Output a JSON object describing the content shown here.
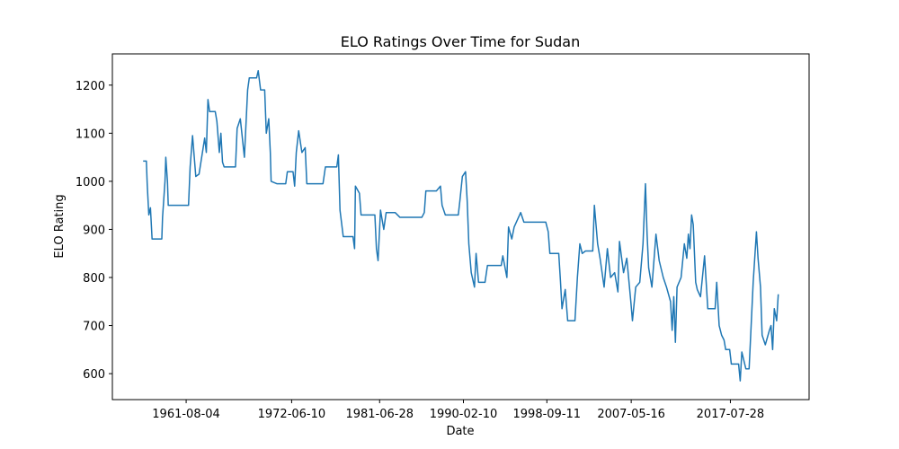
{
  "chart_data": {
    "type": "line",
    "title": "ELO Ratings Over Time for Sudan",
    "x_label": "Date",
    "y_label": "ELO Rating",
    "x": [
      "1957-03",
      "1957-07",
      "1957-08",
      "1957-10",
      "1957-12",
      "1958-02",
      "1959-02",
      "1959-03",
      "1959-06",
      "1959-07",
      "1959-09",
      "1959-10",
      "1961-11",
      "1962-01",
      "1962-04",
      "1962-08",
      "1962-12",
      "1963-07",
      "1963-09",
      "1963-11",
      "1964-01",
      "1964-08",
      "1964-10",
      "1965-01",
      "1965-03",
      "1965-05",
      "1965-07",
      "1966-09",
      "1966-11",
      "1967-03",
      "1967-08",
      "1967-12",
      "1968-02",
      "1968-11",
      "1969-01",
      "1969-04",
      "1969-09",
      "1969-11",
      "1970-02",
      "1970-04",
      "1970-05",
      "1970-12",
      "1971-11",
      "1972-01",
      "1972-08",
      "1972-10",
      "1972-12",
      "1973-03",
      "1973-07",
      "1973-11",
      "1974-01",
      "1975-09",
      "1975-12",
      "1977-02",
      "1977-04",
      "1977-06",
      "1977-10",
      "1978-10",
      "1978-12",
      "1979-01",
      "1979-06",
      "1979-08",
      "1981-01",
      "1981-03",
      "1981-05",
      "1981-08",
      "1981-12",
      "1982-03",
      "1983-02",
      "1983-08",
      "1985-11",
      "1986-02",
      "1986-04",
      "1987-05",
      "1987-10",
      "1987-12",
      "1988-04",
      "1989-08",
      "1989-10",
      "1990-01",
      "1990-05",
      "1990-07",
      "1990-09",
      "1990-12",
      "1991-04",
      "1991-06",
      "1991-09",
      "1992-05",
      "1992-08",
      "1994-01",
      "1994-03",
      "1994-08",
      "1994-10",
      "1995-02",
      "1995-05",
      "1996-01",
      "1996-05",
      "1998-08",
      "1998-11",
      "1999-01",
      "1999-12",
      "2000-02",
      "2000-04",
      "2000-08",
      "2000-11",
      "2001-08",
      "2001-11",
      "2002-02",
      "2002-05",
      "2002-09",
      "2003-06",
      "2003-08",
      "2003-12",
      "2004-03",
      "2004-08",
      "2004-12",
      "2005-04",
      "2005-09",
      "2006-01",
      "2006-03",
      "2006-08",
      "2006-12",
      "2007-05",
      "2007-07",
      "2007-11",
      "2008-04",
      "2008-08",
      "2008-11",
      "2009-01",
      "2009-03",
      "2009-07",
      "2009-12",
      "2010-04",
      "2010-09",
      "2011-01",
      "2011-06",
      "2011-08",
      "2011-10",
      "2011-12",
      "2012-02",
      "2012-07",
      "2012-11",
      "2013-02",
      "2013-04",
      "2013-06",
      "2013-08",
      "2013-10",
      "2014-01",
      "2014-03",
      "2014-07",
      "2014-12",
      "2015-04",
      "2016-01",
      "2016-03",
      "2016-06",
      "2016-09",
      "2016-12",
      "2017-02",
      "2017-07",
      "2017-09",
      "2018-06",
      "2018-08",
      "2018-10",
      "2019-03",
      "2019-07",
      "2019-12",
      "2020-04",
      "2020-06",
      "2020-09",
      "2020-11",
      "2021-03",
      "2021-08",
      "2021-10",
      "2021-12",
      "2022-02",
      "2022-05",
      "2022-07"
    ],
    "series": [
      {
        "name": "Sudan",
        "color": "#1f77b4",
        "values": [
          1042,
          1042,
          995,
          930,
          945,
          880,
          880,
          925,
          1000,
          1050,
          1000,
          950,
          950,
          1030,
          1095,
          1010,
          1015,
          1090,
          1060,
          1170,
          1145,
          1145,
          1125,
          1060,
          1100,
          1040,
          1030,
          1030,
          1110,
          1130,
          1050,
          1190,
          1215,
          1215,
          1230,
          1190,
          1190,
          1100,
          1130,
          1060,
          1000,
          995,
          995,
          1020,
          1020,
          990,
          1060,
          1105,
          1060,
          1070,
          995,
          995,
          1030,
          1030,
          1055,
          940,
          885,
          885,
          860,
          990,
          975,
          930,
          930,
          860,
          835,
          940,
          900,
          935,
          935,
          925,
          925,
          935,
          980,
          980,
          990,
          950,
          930,
          930,
          960,
          1010,
          1020,
          960,
          870,
          810,
          780,
          850,
          790,
          790,
          825,
          825,
          845,
          800,
          905,
          880,
          905,
          935,
          915,
          915,
          895,
          850,
          850,
          795,
          735,
          775,
          710,
          710,
          800,
          870,
          850,
          855,
          855,
          950,
          870,
          840,
          780,
          860,
          800,
          810,
          770,
          875,
          810,
          840,
          750,
          710,
          780,
          790,
          870,
          995,
          890,
          820,
          780,
          890,
          835,
          800,
          780,
          750,
          690,
          760,
          665,
          780,
          800,
          870,
          840,
          890,
          860,
          930,
          910,
          790,
          775,
          760,
          845,
          735,
          735,
          790,
          700,
          680,
          670,
          650,
          650,
          620,
          620,
          585,
          645,
          610,
          610,
          790,
          895,
          840,
          780,
          680,
          660,
          690,
          700,
          650,
          735,
          710,
          765
        ]
      }
    ],
    "xlim": [
      "1954-01",
      "2025-09"
    ],
    "xticks": [
      "1961-08-04",
      "1972-06-10",
      "1981-06-28",
      "1990-02-10",
      "1998-09-11",
      "2007-05-16",
      "2017-07-28"
    ],
    "ylim": [
      546,
      1265
    ],
    "yticks": [
      600,
      700,
      800,
      900,
      1000,
      1100,
      1200
    ]
  }
}
